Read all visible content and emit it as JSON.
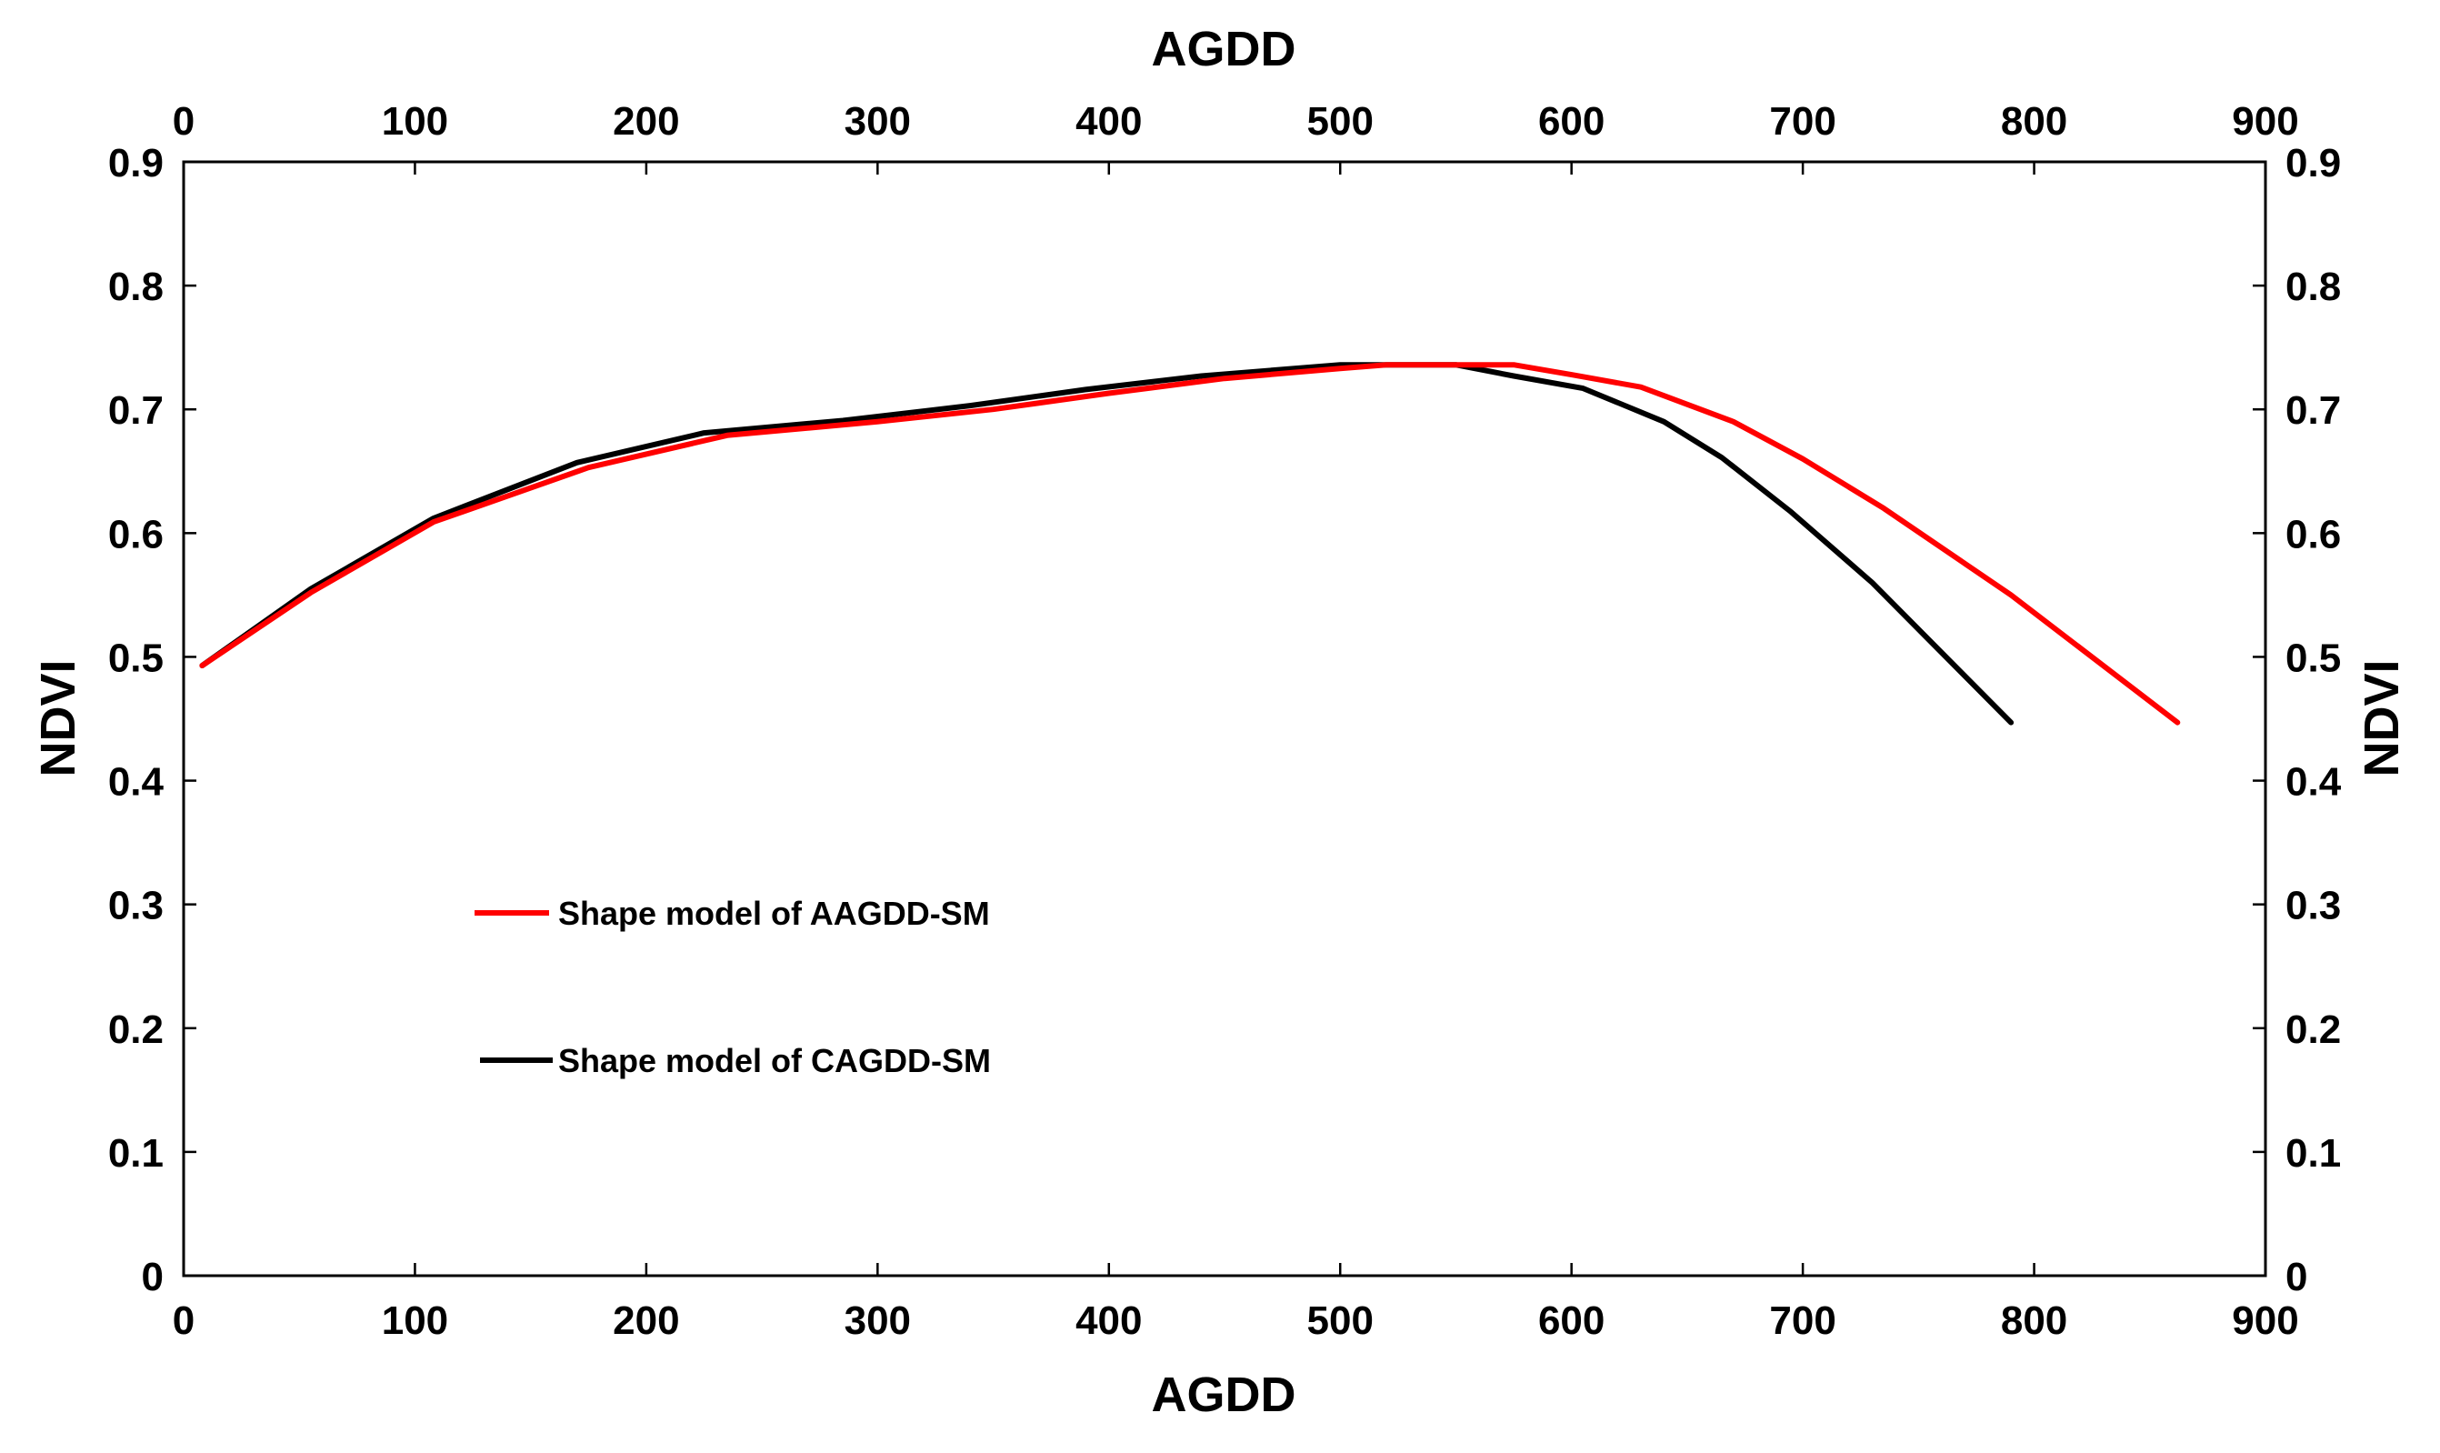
{
  "chart_data": {
    "type": "line",
    "title": "",
    "xlabel": "AGDD",
    "x2label": "AGDD",
    "ylabel": "NDVI",
    "y2label": "NDVI",
    "xlim": [
      0,
      900
    ],
    "ylim": [
      0,
      0.9
    ],
    "xticks": [
      "0",
      "100",
      "200",
      "300",
      "400",
      "500",
      "600",
      "700",
      "800",
      "900"
    ],
    "yticks": [
      "0",
      "0.1",
      "0.2",
      "0.3",
      "0.4",
      "0.5",
      "0.6",
      "0.7",
      "0.8",
      "0.9"
    ],
    "grid": false,
    "legend_position": "center-left",
    "series": [
      {
        "name": "Shape model of CAGDD-SM",
        "color": "#000000",
        "x": [
          8,
          55,
          108,
          170,
          225,
          285,
          340,
          390,
          440,
          500,
          530,
          550,
          575,
          605,
          640,
          665,
          695,
          730,
          790
        ],
        "y": [
          0.493,
          0.555,
          0.612,
          0.657,
          0.681,
          0.691,
          0.703,
          0.716,
          0.727,
          0.736,
          0.736,
          0.736,
          0.727,
          0.717,
          0.69,
          0.661,
          0.617,
          0.56,
          0.447
        ]
      },
      {
        "name": "Shape model of AAGDD-SM",
        "color": "#ff0000",
        "x": [
          8,
          55,
          108,
          175,
          235,
          300,
          350,
          400,
          450,
          500,
          520,
          550,
          575,
          600,
          630,
          670,
          700,
          735,
          790,
          862
        ],
        "y": [
          0.493,
          0.552,
          0.609,
          0.653,
          0.679,
          0.69,
          0.7,
          0.713,
          0.725,
          0.733,
          0.736,
          0.736,
          0.736,
          0.728,
          0.718,
          0.69,
          0.66,
          0.62,
          0.55,
          0.447
        ]
      }
    ],
    "legend": [
      {
        "label": "Shape model of AAGDD-SM",
        "color": "#ff0000"
      },
      {
        "label": "Shape model of CAGDD-SM",
        "color": "#000000"
      }
    ]
  }
}
